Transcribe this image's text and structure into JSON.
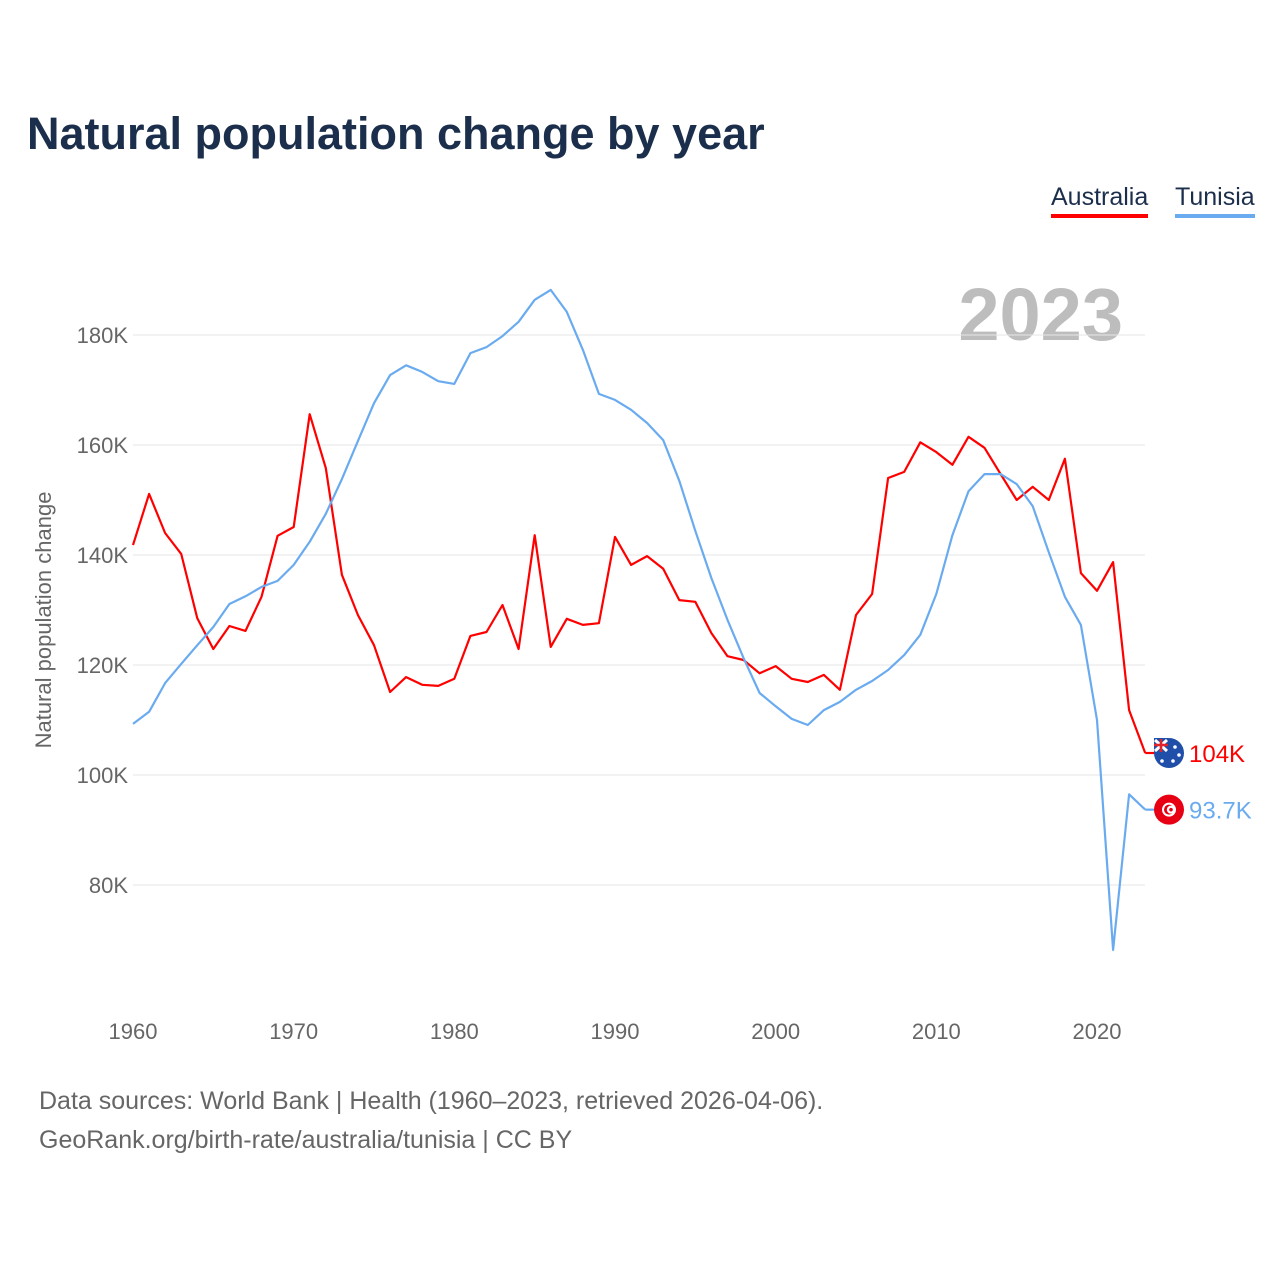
{
  "chart_data": {
    "type": "line",
    "title": "Natural population change by year",
    "xlabel": "",
    "ylabel": "Natural population change",
    "xlim": [
      1960,
      2023
    ],
    "ylim": [
      60000,
      195000
    ],
    "x_ticks": [
      1960,
      1970,
      1980,
      1990,
      2000,
      2010,
      2020
    ],
    "x_tick_labels": [
      "1960",
      "1970",
      "1980",
      "1990",
      "2000",
      "2010",
      "2020"
    ],
    "y_ticks": [
      80000,
      100000,
      120000,
      140000,
      160000,
      180000
    ],
    "y_tick_labels": [
      "80K",
      "100K",
      "120K",
      "140K",
      "160K",
      "180K"
    ],
    "grid": true,
    "legend_placement": "top-right",
    "year_watermark": "2023",
    "x": [
      1960,
      1961,
      1962,
      1963,
      1964,
      1965,
      1966,
      1967,
      1968,
      1969,
      1970,
      1971,
      1972,
      1973,
      1974,
      1975,
      1976,
      1977,
      1978,
      1979,
      1980,
      1981,
      1982,
      1983,
      1984,
      1985,
      1986,
      1987,
      1988,
      1989,
      1990,
      1991,
      1992,
      1993,
      1994,
      1995,
      1996,
      1997,
      1998,
      1999,
      2000,
      2001,
      2002,
      2003,
      2004,
      2005,
      2006,
      2007,
      2008,
      2009,
      2010,
      2011,
      2012,
      2013,
      2014,
      2015,
      2016,
      2017,
      2018,
      2019,
      2020,
      2021,
      2022,
      2023
    ],
    "series": [
      {
        "name": "Australia",
        "color": "#ff0000",
        "end_label": "104K",
        "flag": "australia-flag",
        "values": [
          141.8,
          151.1,
          144,
          140.2,
          128.5,
          122.9,
          127.1,
          126.2,
          132.4,
          143.5,
          145.1,
          165.6,
          155.8,
          136.4,
          129.1,
          123.6,
          115.1,
          117.8,
          116.4,
          116.2,
          117.5,
          125.3,
          126,
          130.9,
          122.9,
          143.6,
          123.3,
          128.4,
          127.3,
          127.6,
          143.3,
          138.2,
          139.8,
          137.5,
          131.8,
          131.5,
          125.8,
          121.6,
          120.9,
          118.5,
          119.8,
          117.5,
          116.9,
          118.2,
          115.5,
          129.1,
          132.9,
          154,
          155.1,
          160.5,
          158.7,
          156.4,
          161.5,
          159.5,
          154.7,
          150,
          152.4,
          150,
          157.5,
          136.7,
          133.5,
          138.7,
          111.8,
          104
        ]
      },
      {
        "name": "Tunisia",
        "color": "#6aabf0",
        "end_label": "93.7K",
        "flag": "tunisia-flag",
        "values": [
          109.3,
          111.5,
          116.7,
          120.2,
          123.6,
          126.9,
          131.1,
          132.5,
          134.2,
          135.3,
          138.2,
          142.4,
          147.5,
          153.8,
          160.7,
          167.6,
          172.7,
          174.5,
          173.3,
          171.6,
          171.1,
          176.7,
          177.8,
          179.8,
          182.4,
          186.4,
          188.2,
          184.2,
          177.3,
          169.3,
          168.2,
          166.4,
          164,
          160.9,
          153.5,
          144.4,
          135.8,
          128.2,
          121.3,
          114.9,
          112.5,
          110.2,
          109.1,
          111.8,
          113.3,
          115.5,
          117.1,
          119.1,
          121.8,
          125.5,
          132.9,
          143.6,
          151.6,
          154.7,
          154.7,
          152.9,
          148.9,
          140.5,
          132.4,
          127.3,
          110,
          68.2,
          96.5,
          93.7
        ]
      }
    ],
    "value_unit_multiplier": 1000
  },
  "footer": {
    "line1": "Data sources: World Bank | Health (1960–2023, retrieved 2026-04-06).",
    "line2": "GeoRank.org/birth-rate/australia/tunisia | CC BY"
  }
}
